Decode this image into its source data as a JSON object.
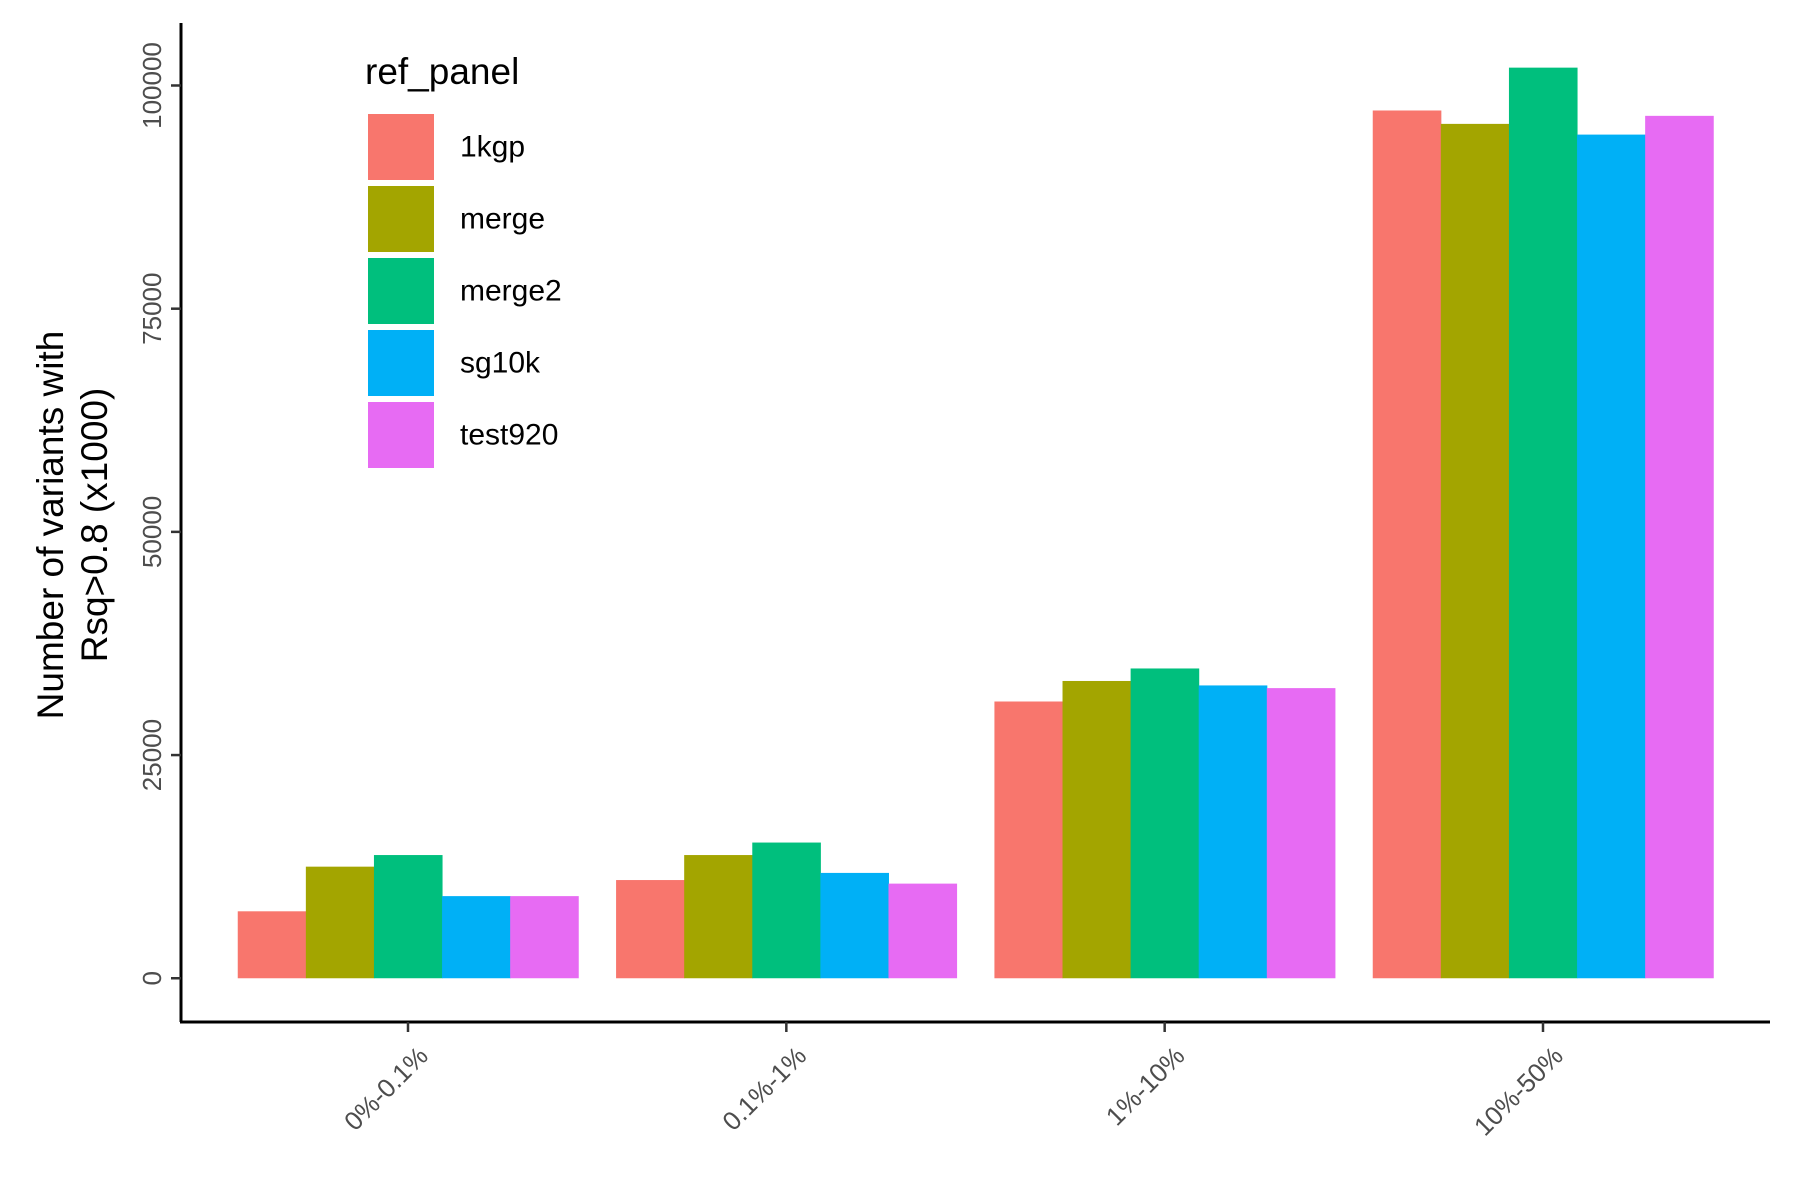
{
  "chart_data": {
    "type": "bar",
    "categories": [
      "0%-0.1%",
      "0.1%-1%",
      "1%-10%",
      "10%-50%"
    ],
    "series": [
      {
        "name": "1kgp",
        "color": "#F8766D",
        "values": [
          7500,
          11000,
          31000,
          97200
        ]
      },
      {
        "name": "merge",
        "color": "#A3A500",
        "values": [
          12500,
          13800,
          33300,
          95700
        ]
      },
      {
        "name": "merge2",
        "color": "#00BF7D",
        "values": [
          13800,
          15200,
          34700,
          102000
        ]
      },
      {
        "name": "sg10k",
        "color": "#00B0F6",
        "values": [
          9200,
          11800,
          32800,
          94500
        ]
      },
      {
        "name": "test920",
        "color": "#E76BF3",
        "values": [
          9200,
          10600,
          32500,
          96600
        ]
      }
    ],
    "xlabel": "",
    "ylabel_lines": [
      "Number of variants with",
      "Rsq>0.8 (x1000)"
    ],
    "ylim": [
      -4900,
      107000
    ],
    "yticks": [
      0,
      25000,
      50000,
      75000,
      100000
    ],
    "legend": {
      "title": "ref_panel",
      "position": "top-left inside"
    },
    "grid": false
  }
}
